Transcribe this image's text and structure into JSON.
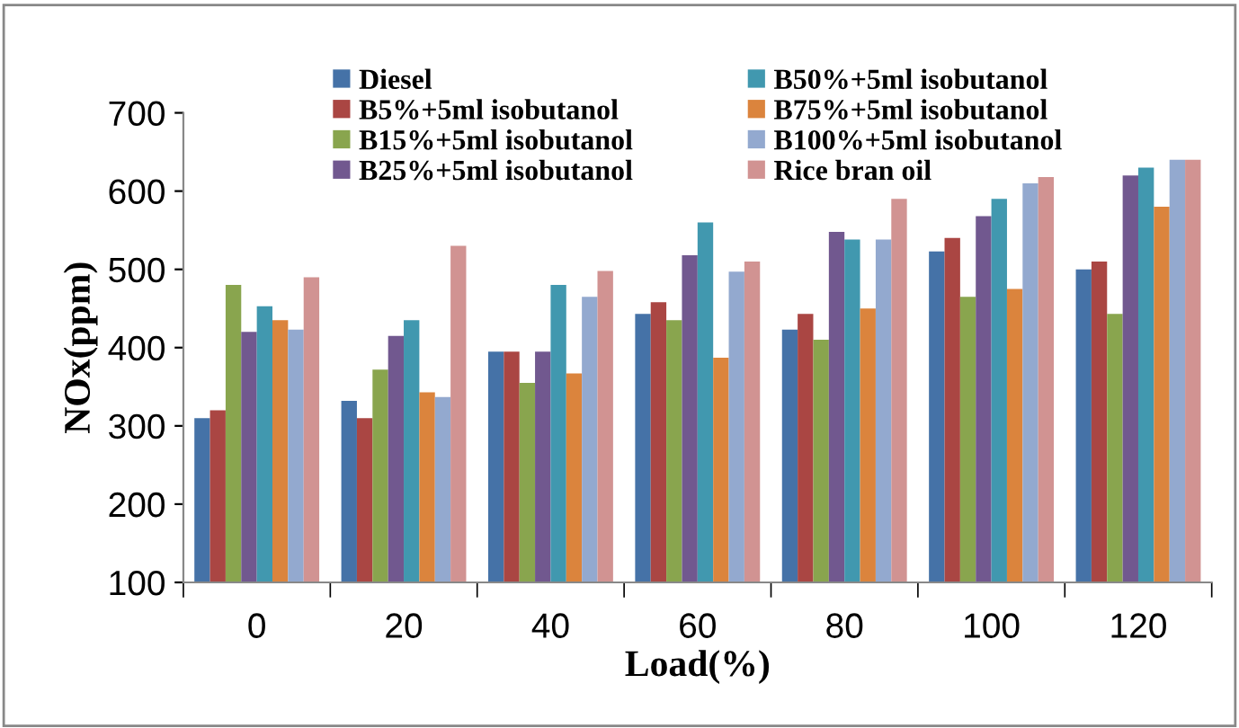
{
  "chart_data": {
    "type": "bar",
    "xlabel": "Load(%)",
    "ylabel": "NOx(ppm)",
    "categories": [
      "0",
      "20",
      "40",
      "60",
      "80",
      "100",
      "120"
    ],
    "ylim": [
      100,
      700
    ],
    "yticks": [
      100,
      200,
      300,
      400,
      500,
      600,
      700
    ],
    "grid": false,
    "legend": "top",
    "series": [
      {
        "name": "Diesel",
        "color": "#4572a7",
        "values": [
          310,
          332,
          395,
          443,
          423,
          523,
          500
        ]
      },
      {
        "name": "B5%+5ml isobutanol",
        "color": "#aa4643",
        "values": [
          320,
          310,
          395,
          458,
          443,
          540,
          510
        ]
      },
      {
        "name": "B15%+5ml isobutanol",
        "color": "#89a54e",
        "values": [
          480,
          372,
          355,
          435,
          410,
          465,
          443
        ]
      },
      {
        "name": "B25%+5ml isobutanol",
        "color": "#71588f",
        "values": [
          420,
          415,
          395,
          518,
          548,
          568,
          620
        ]
      },
      {
        "name": "B50%+5ml isobutanol",
        "color": "#4198af",
        "values": [
          453,
          435,
          480,
          560,
          538,
          590,
          630
        ]
      },
      {
        "name": "B75%+5ml isobutanol",
        "color": "#db843d",
        "values": [
          435,
          343,
          367,
          387,
          450,
          475,
          580
        ]
      },
      {
        "name": "B100%+5ml isobutanol",
        "color": "#93a9cf",
        "values": [
          423,
          337,
          465,
          497,
          538,
          610,
          640
        ]
      },
      {
        "name": "Rice bran oil",
        "color": "#d19392",
        "values": [
          490,
          530,
          498,
          510,
          590,
          618,
          640
        ]
      }
    ]
  }
}
